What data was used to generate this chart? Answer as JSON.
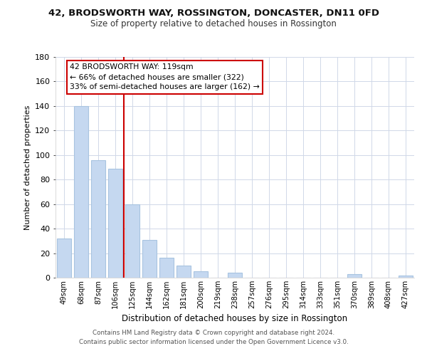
{
  "title": "42, BRODSWORTH WAY, ROSSINGTON, DONCASTER, DN11 0FD",
  "subtitle": "Size of property relative to detached houses in Rossington",
  "xlabel": "Distribution of detached houses by size in Rossington",
  "ylabel": "Number of detached properties",
  "bar_labels": [
    "49sqm",
    "68sqm",
    "87sqm",
    "106sqm",
    "125sqm",
    "144sqm",
    "162sqm",
    "181sqm",
    "200sqm",
    "219sqm",
    "238sqm",
    "257sqm",
    "276sqm",
    "295sqm",
    "314sqm",
    "333sqm",
    "351sqm",
    "370sqm",
    "389sqm",
    "408sqm",
    "427sqm"
  ],
  "bar_values": [
    32,
    140,
    96,
    89,
    60,
    31,
    16,
    10,
    5,
    0,
    4,
    0,
    0,
    0,
    0,
    0,
    0,
    3,
    0,
    0,
    2
  ],
  "bar_color": "#c5d8f0",
  "bar_edge_color": "#a8c4e0",
  "vline_x_idx": 4,
  "vline_color": "#cc0000",
  "ylim": [
    0,
    180
  ],
  "yticks": [
    0,
    20,
    40,
    60,
    80,
    100,
    120,
    140,
    160,
    180
  ],
  "annotation_box_text": "42 BRODSWORTH WAY: 119sqm\n← 66% of detached houses are smaller (322)\n33% of semi-detached houses are larger (162) →",
  "footer_line1": "Contains HM Land Registry data © Crown copyright and database right 2024.",
  "footer_line2": "Contains public sector information licensed under the Open Government Licence v3.0.",
  "bg_color": "#ffffff",
  "grid_color": "#d0d8e8"
}
